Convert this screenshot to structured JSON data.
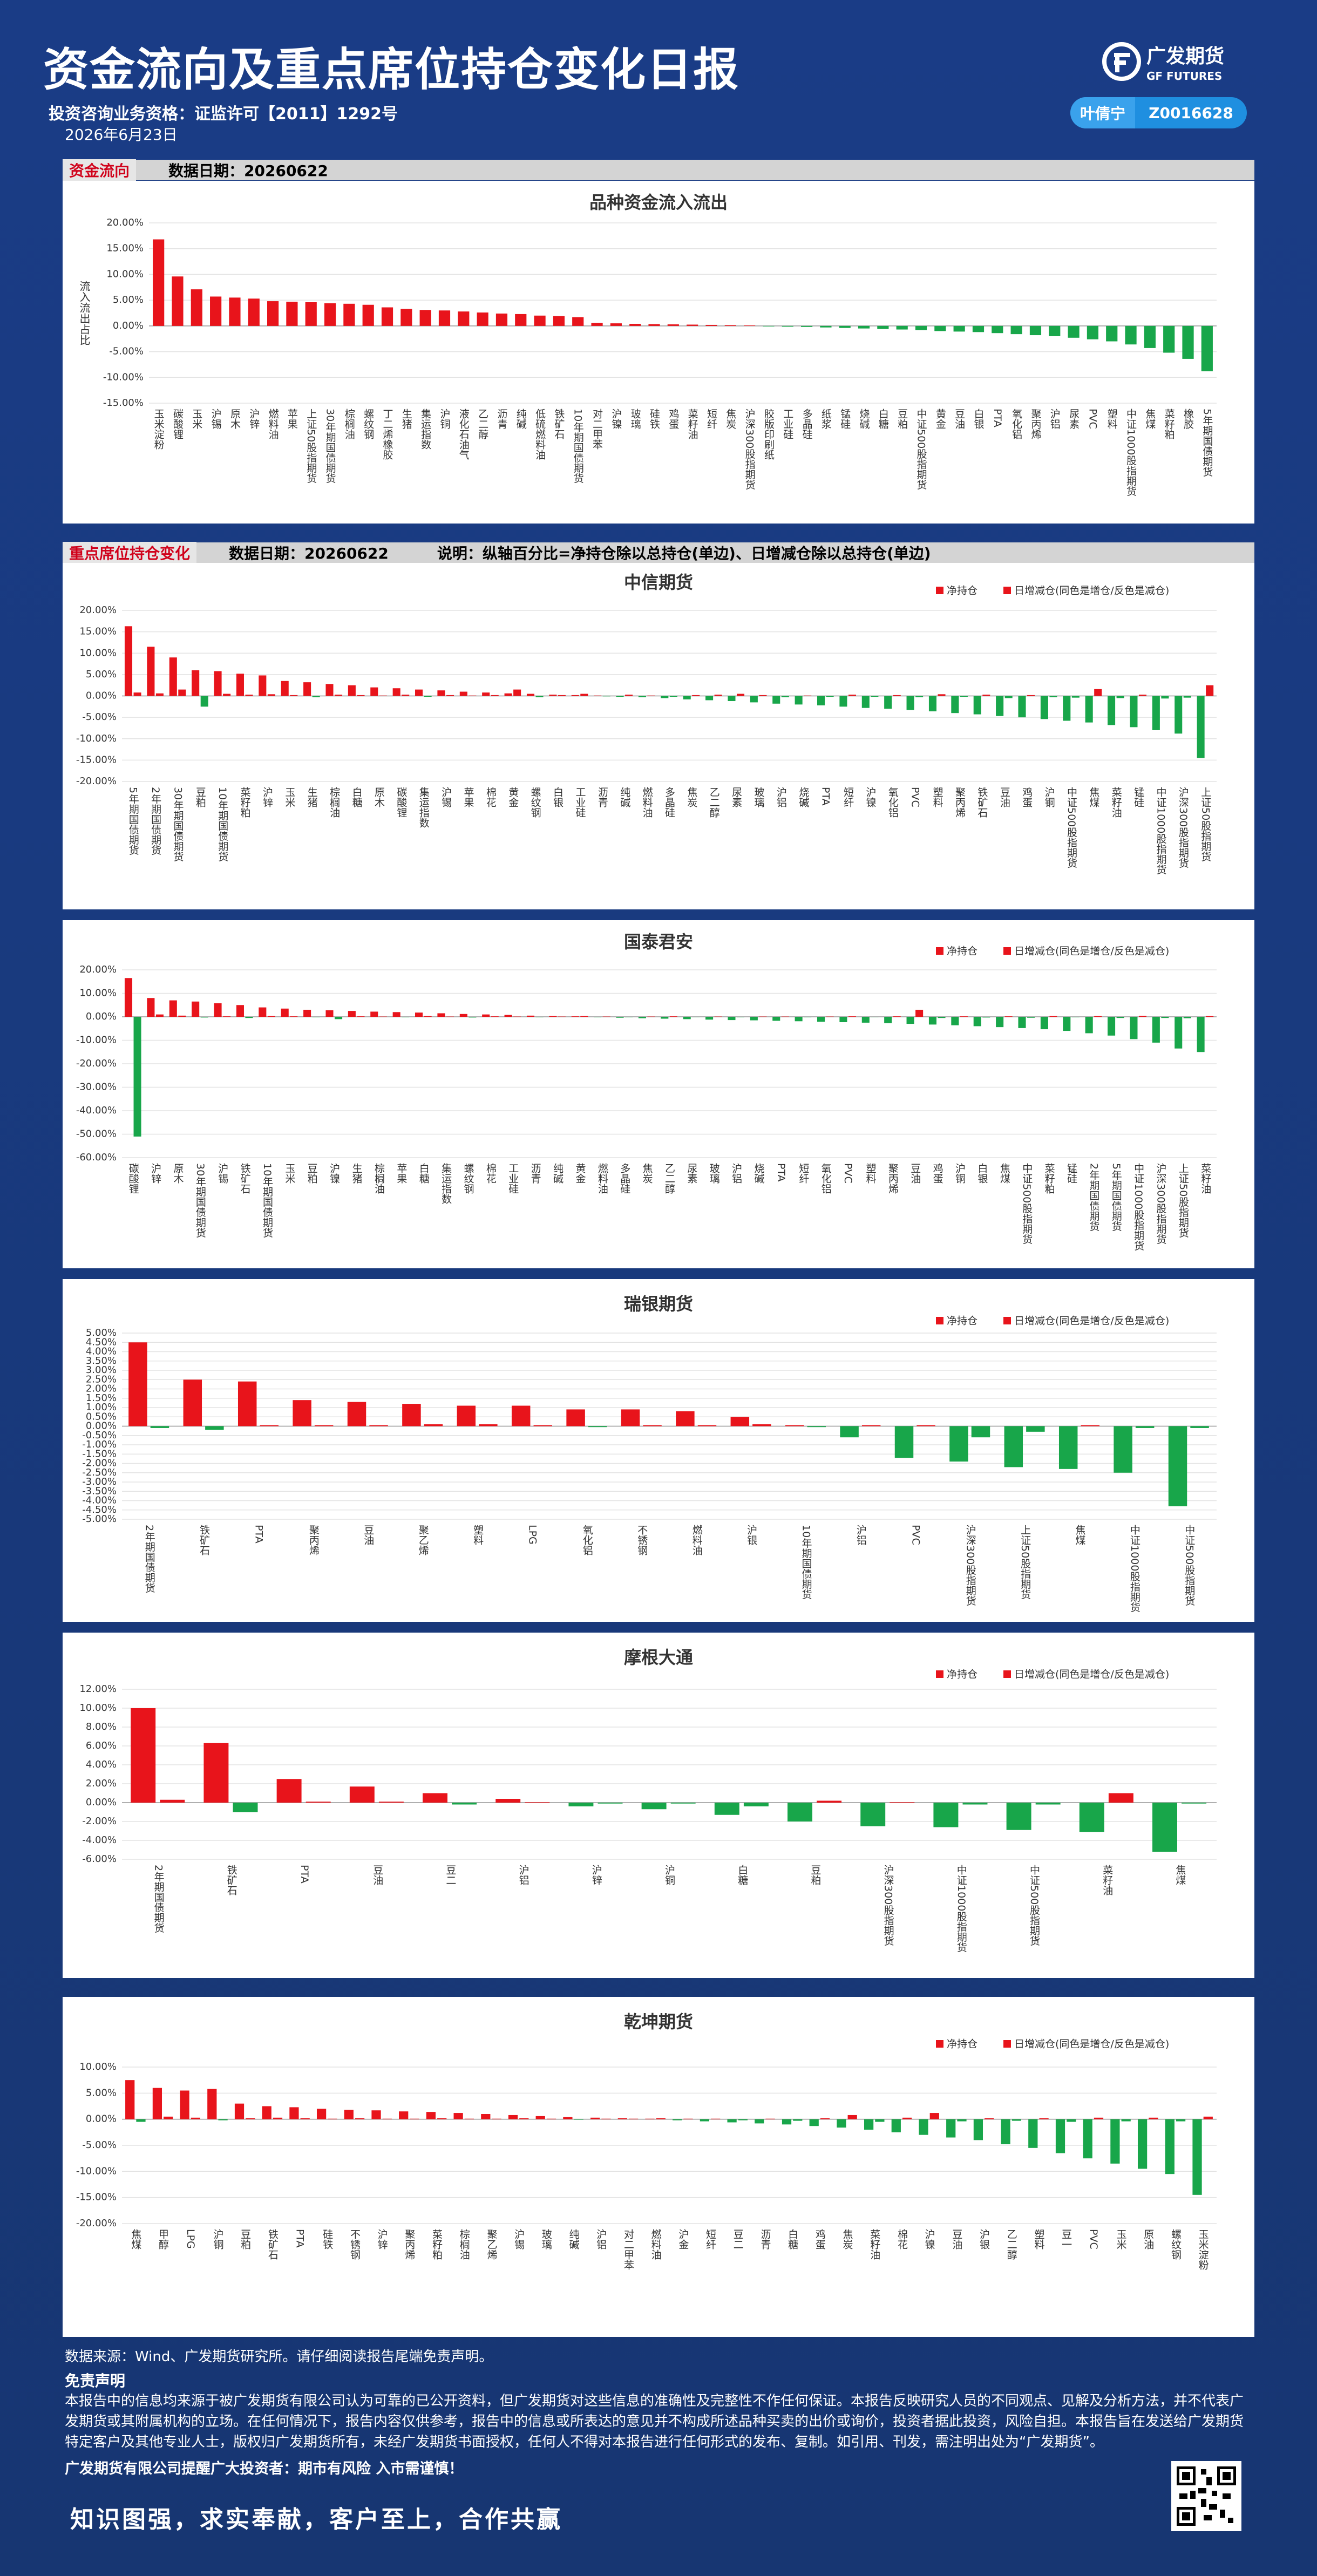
{
  "header": {
    "title": "资金流向及重点席位持仓变化日报",
    "qualification": "投资咨询业务资格：证监许可【2011】1292号",
    "date": "2026年6月23日",
    "logo_cn": "广发期货",
    "logo_en": "GF FUTURES",
    "analyst": "叶倩宁",
    "analyst_id": "Z0016628"
  },
  "sections": [
    {
      "label": "资金流向",
      "date": "数据日期：20260622"
    },
    {
      "label": "重点席位持仓变化",
      "date": "数据日期：20260622",
      "note": "说明：纵轴百分比=净持仓除以总持仓(单边)、日增减仓除以总持仓(单边)"
    }
  ],
  "chart_data": [
    {
      "type": "bar",
      "title": "品种资金流入流出",
      "ylabel": "流入流出占比",
      "positive_color": "#e8141b",
      "negative_color": "#18a64a",
      "grid": true,
      "ylim": [
        -15,
        20
      ],
      "yticks": [
        {
          "value": -15,
          "label": "-15.00%"
        },
        {
          "value": -10,
          "label": "-10.00%"
        },
        {
          "value": -5,
          "label": "-5.00%"
        },
        {
          "value": 0,
          "label": "0.00%"
        },
        {
          "value": 5,
          "label": "5.00%"
        },
        {
          "value": 10,
          "label": "10.00%"
        },
        {
          "value": 15,
          "label": "15.00%"
        },
        {
          "value": 20,
          "label": "20.00%"
        }
      ],
      "categories": [
        "玉米淀粉",
        "碳酸锂",
        "玉米",
        "沪锡",
        "原木",
        "沪锌",
        "燃料油",
        "苹果",
        "上证50股指期货",
        "30年期国债期货",
        "棕榈油",
        "螺纹钢",
        "丁二烯橡胶",
        "生猪",
        "集运指数",
        "沪铜",
        "液化石油气",
        "乙二醇",
        "沥青",
        "纯碱",
        "低硫燃料油",
        "铁矿石",
        "10年期国债期货",
        "对二甲苯",
        "沪镍",
        "玻璃",
        "硅铁",
        "鸡蛋",
        "菜籽油",
        "短纤",
        "焦炭",
        "沪深300股指期货",
        "胶版印刷纸",
        "工业硅",
        "多晶硅",
        "纸浆",
        "锰硅",
        "烧碱",
        "白糖",
        "豆粕",
        "中证500股指期货",
        "黄金",
        "豆油",
        "白银",
        "PTA",
        "氧化铝",
        "聚丙烯",
        "沪铝",
        "尿素",
        "PVC",
        "塑料",
        "中证1000股指期货",
        "焦煤",
        "菜籽粕",
        "橡胶",
        "5年期国债期货"
      ],
      "values": [
        16.8,
        9.6,
        7.1,
        5.7,
        5.5,
        5.3,
        4.8,
        4.7,
        4.6,
        4.4,
        4.3,
        4.1,
        3.6,
        3.3,
        3.1,
        3.0,
        2.8,
        2.6,
        2.4,
        2.3,
        2.0,
        1.9,
        1.7,
        0.6,
        0.5,
        0.4,
        0.35,
        0.3,
        0.25,
        0.2,
        0.15,
        0.1,
        -0.1,
        -0.15,
        -0.2,
        -0.3,
        -0.4,
        -0.5,
        -0.6,
        -0.7,
        -0.8,
        -1.0,
        -1.1,
        -1.2,
        -1.4,
        -1.6,
        -1.8,
        -2.0,
        -2.3,
        -2.6,
        -3.0,
        -3.6,
        -4.3,
        -5.2,
        -6.4,
        -8.8
      ]
    },
    {
      "type": "grouped-bar",
      "title": "中信期货",
      "positive_color": "#e8141b",
      "negative_color": "#18a64a",
      "grid": true,
      "legend": "top-right",
      "ylim": [
        -20,
        20
      ],
      "yticks": [
        {
          "value": -20,
          "label": "-20.00%"
        },
        {
          "value": -15,
          "label": "-15.00%"
        },
        {
          "value": -10,
          "label": "-10.00%"
        },
        {
          "value": -5,
          "label": "-5.00%"
        },
        {
          "value": 0,
          "label": "0.00%"
        },
        {
          "value": 5,
          "label": "5.00%"
        },
        {
          "value": 10,
          "label": "10.00%"
        },
        {
          "value": 15,
          "label": "15.00%"
        },
        {
          "value": 20,
          "label": "20.00%"
        }
      ],
      "categories": [
        "5年期国债期货",
        "2年期国债期货",
        "30年期国债期货",
        "豆粕",
        "10年期国债期货",
        "菜籽粕",
        "沪锌",
        "玉米",
        "生猪",
        "棕榈油",
        "白糖",
        "原木",
        "碳酸锂",
        "集运指数",
        "沪锡",
        "苹果",
        "棉花",
        "黄金",
        "螺纹钢",
        "白银",
        "工业硅",
        "沥青",
        "纯碱",
        "燃料油",
        "多晶硅",
        "焦炭",
        "乙二醇",
        "尿素",
        "玻璃",
        "沪铝",
        "烧碱",
        "PTA",
        "短纤",
        "沪镍",
        "氧化铝",
        "PVC",
        "塑料",
        "聚丙烯",
        "铁矿石",
        "豆油",
        "鸡蛋",
        "沪铜",
        "中证500股指期货",
        "焦煤",
        "菜籽油",
        "锰硅",
        "中证1000股指期货",
        "沪深300股指期货",
        "上证50股指期货"
      ],
      "series": [
        {
          "name": "净持仓",
          "color": "#e8141b",
          "values": [
            16.3,
            11.5,
            9.0,
            6.0,
            5.8,
            5.2,
            4.8,
            3.5,
            3.2,
            2.8,
            2.5,
            2.0,
            1.8,
            1.5,
            1.3,
            1.0,
            0.8,
            0.6,
            0.5,
            0.3,
            0.2,
            0.1,
            -0.2,
            -0.3,
            -0.5,
            -0.8,
            -1.0,
            -1.2,
            -1.5,
            -1.8,
            -2.0,
            -2.2,
            -2.5,
            -2.8,
            -3.0,
            -3.3,
            -3.6,
            -4.0,
            -4.3,
            -4.7,
            -5.0,
            -5.4,
            -5.8,
            -6.2,
            -6.8,
            -7.3,
            -8.0,
            -8.8,
            -14.5
          ]
        },
        {
          "name": "日增减仓(同色是增仓/反色是减仓)",
          "color": "#e8141b",
          "values": [
            0.8,
            0.6,
            1.5,
            -2.5,
            0.5,
            0.3,
            0.4,
            0.2,
            -0.3,
            0.3,
            0.2,
            0.1,
            0.3,
            -0.2,
            0.2,
            0.1,
            0.2,
            1.5,
            -0.3,
            0.2,
            0.5,
            -0.1,
            0.3,
            0.1,
            -0.2,
            0.2,
            0.3,
            0.5,
            0.2,
            -0.3,
            0.1,
            -0.2,
            0.3,
            -0.2,
            0.2,
            -0.3,
            0.4,
            -0.2,
            0.3,
            -0.5,
            0.2,
            -0.3,
            -0.4,
            1.6,
            -0.5,
            0.3,
            -0.6,
            -0.4,
            2.5
          ]
        }
      ]
    },
    {
      "type": "grouped-bar",
      "title": "国泰君安",
      "positive_color": "#e8141b",
      "negative_color": "#18a64a",
      "grid": true,
      "legend": "top-right",
      "ylim": [
        -60,
        20
      ],
      "yticks": [
        {
          "value": -60,
          "label": "-60.00%"
        },
        {
          "value": -50,
          "label": "-50.00%"
        },
        {
          "value": -40,
          "label": "-40.00%"
        },
        {
          "value": -30,
          "label": "-30.00%"
        },
        {
          "value": -20,
          "label": "-20.00%"
        },
        {
          "value": -10,
          "label": "-10.00%"
        },
        {
          "value": 0,
          "label": "0.00%"
        },
        {
          "value": 10,
          "label": "10.00%"
        },
        {
          "value": 20,
          "label": "20.00%"
        }
      ],
      "categories": [
        "碳酸锂",
        "沪锌",
        "原木",
        "30年期国债期货",
        "沪锡",
        "铁矿石",
        "10年期国债期货",
        "玉米",
        "豆粕",
        "沪镍",
        "生猪",
        "棕榈油",
        "苹果",
        "白糖",
        "集运指数",
        "螺纹钢",
        "棉花",
        "工业硅",
        "沥青",
        "纯碱",
        "黄金",
        "燃料油",
        "多晶硅",
        "焦炭",
        "乙二醇",
        "尿素",
        "玻璃",
        "沪铝",
        "烧碱",
        "PTA",
        "短纤",
        "氧化铝",
        "PVC",
        "塑料",
        "聚丙烯",
        "豆油",
        "鸡蛋",
        "沪铜",
        "白银",
        "焦煤",
        "中证500股指期货",
        "菜籽粕",
        "锰硅",
        "2年期国债期货",
        "5年期国债期货",
        "中证1000股指期货",
        "沪深300股指期货",
        "上证50股指期货",
        "菜籽油"
      ],
      "series": [
        {
          "name": "净持仓",
          "color": "#e8141b",
          "values": [
            16.5,
            8.0,
            7.0,
            6.5,
            5.8,
            5.0,
            4.0,
            3.5,
            3.0,
            2.8,
            2.5,
            2.2,
            2.0,
            1.8,
            1.5,
            1.2,
            1.0,
            0.8,
            0.5,
            0.3,
            0.2,
            -0.2,
            -0.4,
            -0.6,
            -0.8,
            -1.0,
            -1.2,
            -1.4,
            -1.5,
            -1.7,
            -1.9,
            -2.1,
            -2.3,
            -2.5,
            -2.7,
            -3.0,
            -3.3,
            -3.6,
            -4.0,
            -4.4,
            -4.8,
            -5.3,
            -6.0,
            -7.0,
            -8.0,
            -9.5,
            -11.0,
            -13.5,
            -15.0
          ]
        },
        {
          "name": "日增减仓(同色是增仓/反色是减仓)",
          "color": "#e8141b",
          "values": [
            -51.0,
            1.0,
            0.5,
            -0.3,
            0.2,
            -0.5,
            0.3,
            0.2,
            -0.2,
            -1.0,
            0.2,
            0.1,
            -0.2,
            0.3,
            0.1,
            -0.3,
            0.2,
            0.1,
            -0.2,
            0.1,
            0.3,
            0.1,
            -0.2,
            0.1,
            0.2,
            -0.1,
            0.1,
            -0.2,
            0.1,
            0.1,
            -0.2,
            0.1,
            0.2,
            -0.1,
            0.2,
            3.0,
            -0.5,
            0.2,
            -0.3,
            0.2,
            -0.4,
            0.3,
            -0.2,
            0.3,
            -0.5,
            0.4,
            -0.5,
            -0.6,
            0.3
          ]
        }
      ]
    },
    {
      "type": "grouped-bar",
      "title": "瑞银期货",
      "positive_color": "#e8141b",
      "negative_color": "#18a64a",
      "grid": true,
      "legend": "top-right",
      "ylim": [
        -5,
        5
      ],
      "yticks": [
        {
          "value": -5,
          "label": "-5.00%"
        },
        {
          "value": -4.5,
          "label": "-4.50%"
        },
        {
          "value": -4,
          "label": "-4.00%"
        },
        {
          "value": -3.5,
          "label": "-3.50%"
        },
        {
          "value": -3,
          "label": "-3.00%"
        },
        {
          "value": -2.5,
          "label": "-2.50%"
        },
        {
          "value": -2,
          "label": "-2.00%"
        },
        {
          "value": -1.5,
          "label": "-1.50%"
        },
        {
          "value": -1,
          "label": "-1.00%"
        },
        {
          "value": -0.5,
          "label": "-0.50%"
        },
        {
          "value": 0,
          "label": "0.00%"
        },
        {
          "value": 0.5,
          "label": "0.50%"
        },
        {
          "value": 1,
          "label": "1.00%"
        },
        {
          "value": 1.5,
          "label": "1.50%"
        },
        {
          "value": 2,
          "label": "2.00%"
        },
        {
          "value": 2.5,
          "label": "2.50%"
        },
        {
          "value": 3,
          "label": "3.00%"
        },
        {
          "value": 3.5,
          "label": "3.50%"
        },
        {
          "value": 4,
          "label": "4.00%"
        },
        {
          "value": 4.5,
          "label": "4.50%"
        },
        {
          "value": 5,
          "label": "5.00%"
        }
      ],
      "categories": [
        "2年期国债期货",
        "铁矿石",
        "PTA",
        "聚丙烯",
        "豆油",
        "聚乙烯",
        "塑料",
        "LPG",
        "氧化铝",
        "不锈钢",
        "燃料油",
        "沪银",
        "10年期国债期货",
        "沪铝",
        "PVC",
        "沪深300股指期货",
        "上证50股指期货",
        "焦煤",
        "中证1000股指期货",
        "中证500股指期货"
      ],
      "series": [
        {
          "name": "净持仓",
          "color": "#e8141b",
          "values": [
            4.5,
            2.5,
            2.4,
            1.4,
            1.3,
            1.2,
            1.1,
            1.1,
            0.9,
            0.9,
            0.8,
            0.5,
            0.05,
            -0.6,
            -1.7,
            -1.9,
            -2.2,
            -2.3,
            -2.5,
            -4.3
          ]
        },
        {
          "name": "日增减仓(同色是增仓/反色是减仓)",
          "color": "#e8141b",
          "values": [
            -0.1,
            -0.2,
            0.05,
            0.05,
            0.05,
            0.1,
            0.1,
            0.05,
            -0.05,
            0.05,
            0.05,
            0.1,
            -0.05,
            0.05,
            0.05,
            -0.6,
            -0.3,
            0.05,
            -0.1,
            -0.1
          ]
        }
      ]
    },
    {
      "type": "grouped-bar",
      "title": "摩根大通",
      "positive_color": "#e8141b",
      "negative_color": "#18a64a",
      "grid": true,
      "legend": "top-right",
      "ylim": [
        -6,
        12
      ],
      "yticks": [
        {
          "value": -6,
          "label": "-6.00%"
        },
        {
          "value": -4,
          "label": "-4.00%"
        },
        {
          "value": -2,
          "label": "-2.00%"
        },
        {
          "value": 0,
          "label": "0.00%"
        },
        {
          "value": 2,
          "label": "2.00%"
        },
        {
          "value": 4,
          "label": "4.00%"
        },
        {
          "value": 6,
          "label": "6.00%"
        },
        {
          "value": 8,
          "label": "8.00%"
        },
        {
          "value": 10,
          "label": "10.00%"
        },
        {
          "value": 12,
          "label": "12.00%"
        }
      ],
      "categories": [
        "2年期国债期货",
        "铁矿石",
        "PTA",
        "豆油",
        "豆二",
        "沪铝",
        "沪锌",
        "沪铜",
        "白糖",
        "豆粕",
        "沪深300股指期货",
        "中证1000股指期货",
        "中证500股指期货",
        "菜籽油",
        "焦煤"
      ],
      "series": [
        {
          "name": "净持仓",
          "color": "#e8141b",
          "values": [
            10.0,
            6.3,
            2.5,
            1.7,
            1.0,
            0.4,
            -0.4,
            -0.7,
            -1.3,
            -2.0,
            -2.5,
            -2.6,
            -2.9,
            -3.1,
            -5.2
          ]
        },
        {
          "name": "日增减仓(同色是增仓/反色是减仓)",
          "color": "#e8141b",
          "values": [
            0.3,
            -1.0,
            0.1,
            0.1,
            -0.2,
            0.05,
            -0.1,
            -0.1,
            -0.4,
            0.2,
            0.05,
            -0.2,
            -0.2,
            1.0,
            -0.1
          ]
        }
      ]
    },
    {
      "type": "grouped-bar",
      "title": "乾坤期货",
      "positive_color": "#e8141b",
      "negative_color": "#18a64a",
      "grid": true,
      "legend": "top-right",
      "ylim": [
        -20,
        10
      ],
      "yticks": [
        {
          "value": -20,
          "label": "-20.00%"
        },
        {
          "value": -15,
          "label": "-15.00%"
        },
        {
          "value": -10,
          "label": "-10.00%"
        },
        {
          "value": -5,
          "label": "-5.00%"
        },
        {
          "value": 0,
          "label": "0.00%"
        },
        {
          "value": 5,
          "label": "5.00%"
        },
        {
          "value": 10,
          "label": "10.00%"
        }
      ],
      "categories": [
        "焦煤",
        "甲醇",
        "LPG",
        "沪铜",
        "豆粕",
        "铁矿石",
        "PTA",
        "硅铁",
        "不锈钢",
        "沪锌",
        "聚丙烯",
        "菜籽粕",
        "棕榈油",
        "聚乙烯",
        "沪锡",
        "玻璃",
        "纯碱",
        "沪铝",
        "对二甲苯",
        "燃料油",
        "沪金",
        "短纤",
        "豆二",
        "沥青",
        "白糖",
        "鸡蛋",
        "焦炭",
        "菜籽油",
        "棉花",
        "沪镍",
        "豆油",
        "沪银",
        "乙二醇",
        "塑料",
        "豆一",
        "PVC",
        "玉米",
        "原油",
        "螺纹钢",
        "玉米淀粉"
      ],
      "series": [
        {
          "name": "净持仓",
          "color": "#e8141b",
          "values": [
            7.5,
            6.0,
            5.5,
            5.8,
            3.0,
            2.5,
            2.3,
            2.0,
            1.8,
            1.7,
            1.5,
            1.4,
            1.2,
            1.0,
            0.8,
            0.6,
            0.4,
            0.3,
            0.2,
            0.1,
            -0.2,
            -0.4,
            -0.6,
            -0.8,
            -1.0,
            -1.3,
            -1.6,
            -2.0,
            -2.5,
            -3.0,
            -3.5,
            -4.0,
            -4.8,
            -5.5,
            -6.5,
            -7.5,
            -8.5,
            -9.5,
            -10.5,
            -14.5
          ]
        },
        {
          "name": "日增减仓(同色是增仓/反色是减仓)",
          "color": "#e8141b",
          "values": [
            -0.5,
            0.5,
            0.3,
            -0.2,
            0.2,
            0.3,
            0.2,
            0.1,
            0.2,
            0.1,
            0.1,
            0.2,
            0.1,
            0.1,
            0.2,
            0.1,
            -0.1,
            0.1,
            0.1,
            0.2,
            0.1,
            0.1,
            -0.2,
            0.1,
            -0.3,
            0.2,
            0.8,
            -0.5,
            0.3,
            1.2,
            -0.4,
            0.2,
            -0.3,
            0.2,
            -0.5,
            0.3,
            -0.4,
            0.3,
            -0.4,
            0.5
          ]
        }
      ]
    }
  ],
  "footer": {
    "source": "数据来源：Wind、广发期货研究所。请仔细阅读报告尾端免责声明。",
    "disclaimer_title": "免责声明",
    "disclaimer": "本报告中的信息均来源于被广发期货有限公司认为可靠的已公开资料，但广发期货对这些信息的准确性及完整性不作任何保证。本报告反映研究人员的不同观点、见解及分析方法，并不代表广发期货或其附属机构的立场。在任何情况下，报告内容仅供参考，报告中的信息或所表达的意见并不构成所述品种买卖的出价或询价，投资者据此投资，风险自担。本报告旨在发送给广发期货特定客户及其他专业人士，版权归广发期货所有，未经广发期货书面授权，任何人不得对本报告进行任何形式的发布、复制。如引用、刊发，需注明出处为“广发期货”。",
    "reminder": "广发期货有限公司提醒广大投资者：期市有风险 入市需谨慎！",
    "slogan": "知识图强，求实奉献，客户至上，合作共赢"
  }
}
